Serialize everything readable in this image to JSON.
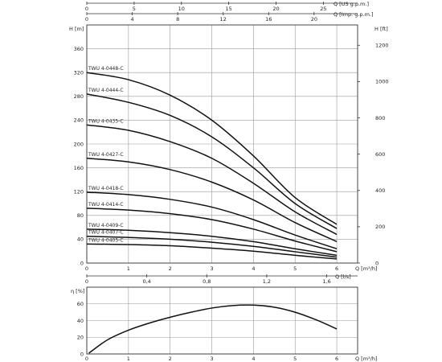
{
  "chart_data": [
    {
      "type": "line",
      "title": "",
      "xlabel": "Q [m³/h]",
      "ylabel": "H [m]",
      "y2label": "H [ft]",
      "xlim": [
        0,
        6.5
      ],
      "ylim": [
        0,
        400
      ],
      "y2lim": [
        0,
        1312
      ],
      "x_ticks": [
        "0",
        "1",
        "2",
        "3",
        "4",
        "5",
        "6"
      ],
      "y_ticks": [
        "0",
        "40",
        "80",
        "120",
        "160",
        "200",
        "240",
        "280",
        "320",
        "360"
      ],
      "y2_ticks": [
        "0",
        "200",
        "400",
        "600",
        "800",
        "1000",
        "1200"
      ],
      "top_axes": [
        {
          "label": "Q [US g.p.m.]",
          "max": 28.62,
          "ticks": [
            "0",
            "5",
            "10",
            "15",
            "20",
            "25"
          ]
        },
        {
          "label": "Q [Imp. g.p.m.]",
          "max": 23.83,
          "ticks": [
            "0",
            "4",
            "8",
            "12",
            "16",
            "20"
          ]
        }
      ],
      "grid": true,
      "series": [
        {
          "name": "TWU 4-0448-C",
          "x": [
            0,
            1,
            2,
            3,
            4,
            5,
            6
          ],
          "y": [
            320,
            308,
            282,
            240,
            180,
            110,
            65
          ]
        },
        {
          "name": "TWU 4-0444-C",
          "x": [
            0,
            1,
            2,
            3,
            4,
            5,
            6
          ],
          "y": [
            284,
            270,
            248,
            212,
            160,
            100,
            58
          ]
        },
        {
          "name": "TWU 4-0435-C",
          "x": [
            0,
            1,
            2,
            3,
            4,
            5,
            6
          ],
          "y": [
            232,
            223,
            204,
            176,
            134,
            86,
            48
          ]
        },
        {
          "name": "TWU 4-0427-C",
          "x": [
            0,
            1,
            2,
            3,
            4,
            5,
            6
          ],
          "y": [
            176,
            170,
            157,
            136,
            106,
            68,
            36
          ]
        },
        {
          "name": "TWU 4-0418-C",
          "x": [
            0,
            1,
            2,
            3,
            4,
            5,
            6
          ],
          "y": [
            119,
            115,
            107,
            94,
            73,
            47,
            24
          ]
        },
        {
          "name": "TWU 4-0414-C",
          "x": [
            0,
            1,
            2,
            3,
            4,
            5,
            6
          ],
          "y": [
            92,
            89,
            83,
            73,
            57,
            37,
            19
          ]
        },
        {
          "name": "TWU 4-0409-C",
          "x": [
            0,
            1,
            2,
            3,
            4,
            5,
            6
          ],
          "y": [
            57,
            55,
            51,
            45,
            36,
            24,
            13
          ]
        },
        {
          "name": "TWU 4-0407-C",
          "x": [
            0,
            1,
            2,
            3,
            4,
            5,
            6
          ],
          "y": [
            45,
            43,
            40,
            35,
            28,
            19,
            10
          ]
        },
        {
          "name": "TWU 4-0405-C",
          "x": [
            0,
            1,
            2,
            3,
            4,
            5,
            6
          ],
          "y": [
            32,
            31,
            29,
            25,
            20,
            13,
            7
          ]
        }
      ]
    },
    {
      "type": "line",
      "title": "",
      "xlabel": "Q [m³/h]",
      "ylabel": "η [%]",
      "xlim": [
        0,
        6.5
      ],
      "ylim": [
        0,
        80
      ],
      "x_ticks": [
        "0",
        "1",
        "2",
        "3",
        "4",
        "5",
        "6"
      ],
      "y_ticks": [
        "0",
        "20",
        "40",
        "60"
      ],
      "top_axis": {
        "label": "Q [l/s]",
        "max": 1.806,
        "ticks": [
          "0",
          "0,4",
          "0,8",
          "1,2",
          "1,6"
        ],
        "tick_values": [
          0,
          0.4,
          0.8,
          1.2,
          1.6
        ]
      },
      "grid": true,
      "series": [
        {
          "name": "",
          "x": [
            0.05,
            0.5,
            1,
            1.5,
            2,
            2.5,
            3,
            3.5,
            4,
            4.5,
            5,
            5.5,
            6
          ],
          "y": [
            1,
            17,
            28.5,
            37,
            44,
            50,
            55,
            58,
            58.5,
            56,
            50,
            41,
            30
          ]
        }
      ]
    }
  ]
}
